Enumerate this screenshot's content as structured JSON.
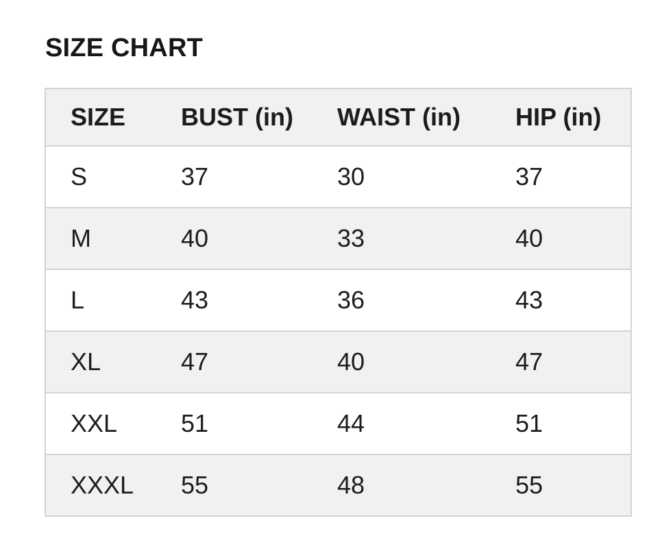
{
  "title": "SIZE CHART",
  "chart_data": {
    "type": "table",
    "title": "SIZE CHART",
    "columns": [
      "SIZE",
      "BUST (in)",
      "WAIST (in)",
      "HIP (in)"
    ],
    "rows": [
      [
        "S",
        "37",
        "30",
        "37"
      ],
      [
        "M",
        "40",
        "33",
        "40"
      ],
      [
        "L",
        "43",
        "36",
        "43"
      ],
      [
        "XL",
        "47",
        "40",
        "47"
      ],
      [
        "XXL",
        "51",
        "44",
        "51"
      ],
      [
        "XXXL",
        "55",
        "48",
        "55"
      ]
    ],
    "layout": {
      "striped_rows": true,
      "stripe_pattern": "white, light-gray alternating starting white",
      "separators": "horizontal only"
    },
    "colors": {
      "header_bg": "#f0f1f1",
      "row_bg": "#ffffff",
      "row_alt_bg": "#f0f1f1",
      "border": "#d2d4d4",
      "text": "#1b1c1d"
    }
  }
}
